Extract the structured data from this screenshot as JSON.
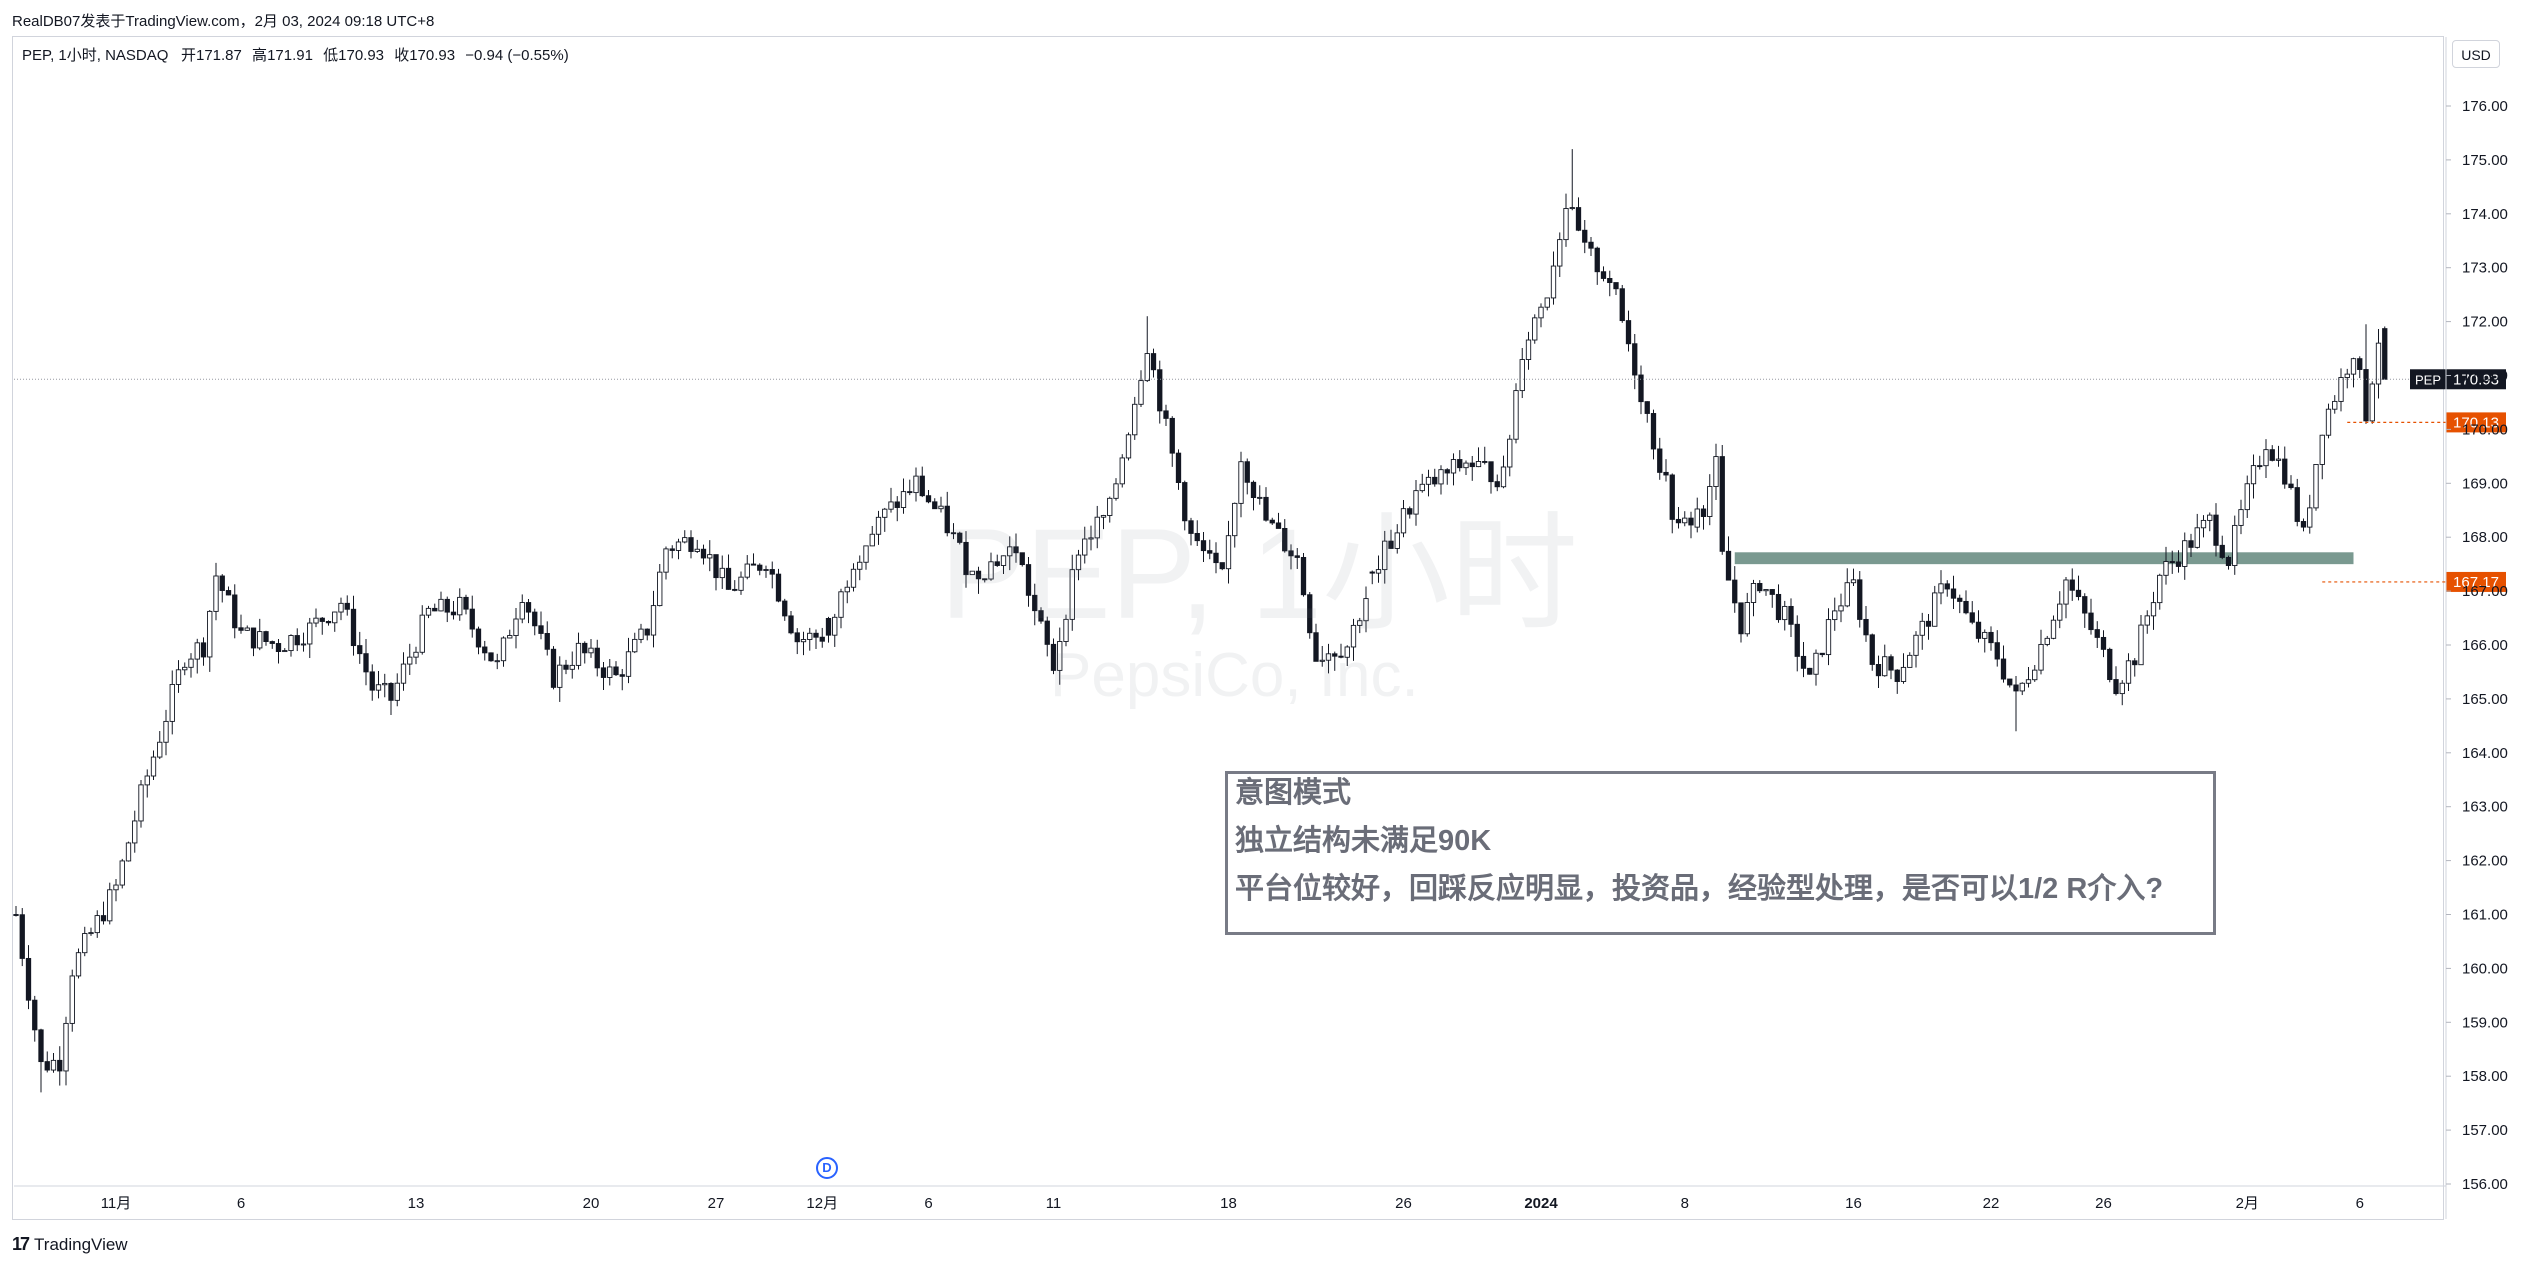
{
  "header": {
    "publisher": "RealDB07发表于TradingView.com，2月 03, 2024 09:18 UTC+8"
  },
  "legend": {
    "symbol": "PEP, 1小时, NASDAQ",
    "open_label": "开",
    "open": "171.87",
    "high_label": "高",
    "high": "171.91",
    "low_label": "低",
    "low": "170.93",
    "close_label": "收",
    "close": "170.93",
    "change": "−0.94 (−0.55%)"
  },
  "currency": "USD",
  "watermark": {
    "main": "PEP, 1小时",
    "sub": "PepsiCo, Inc."
  },
  "annotation": {
    "lines": [
      "意图模式",
      "独立结构未满足90K",
      "平台位较好，回踩反应明显，投资品，经验型处理，是否可以1/2 R介入?"
    ]
  },
  "event_marker": "D",
  "brand": "TradingView",
  "colors": {
    "candle_border": "#131722",
    "up_fill": "#ffffff",
    "down_fill": "#131722",
    "zone": "#6b8e84",
    "level_orange": "#e65100",
    "last_price_bg": "#131722",
    "grid_dotted": "#9598a1"
  },
  "chart_data": {
    "type": "candlestick",
    "symbol": "PEP",
    "timeframe": "1小时",
    "exchange": "NASDAQ",
    "ylim": [
      155.9,
      176.8
    ],
    "yticks": [
      "176.00",
      "175.00",
      "174.00",
      "173.00",
      "172.00",
      "171.00",
      "170.00",
      "169.00",
      "168.00",
      "167.00",
      "166.00",
      "165.00",
      "164.00",
      "163.00",
      "162.00",
      "161.00",
      "160.00",
      "159.00",
      "158.00",
      "157.00",
      "156.00"
    ],
    "xticks": [
      {
        "label": "11月",
        "bar": 16
      },
      {
        "label": "6",
        "bar": 36
      },
      {
        "label": "13",
        "bar": 64
      },
      {
        "label": "20",
        "bar": 92
      },
      {
        "label": "27",
        "bar": 112
      },
      {
        "label": "12月",
        "bar": 129
      },
      {
        "label": "6",
        "bar": 146
      },
      {
        "label": "11",
        "bar": 166
      },
      {
        "label": "18",
        "bar": 194
      },
      {
        "label": "26",
        "bar": 222
      },
      {
        "label": "2024",
        "bar": 244
      },
      {
        "label": "8",
        "bar": 267
      },
      {
        "label": "16",
        "bar": 294
      },
      {
        "label": "22",
        "bar": 316
      },
      {
        "label": "26",
        "bar": 334
      },
      {
        "label": "2月",
        "bar": 357
      },
      {
        "label": "6",
        "bar": 375
      }
    ],
    "waypoints": [
      [
        0,
        161.0
      ],
      [
        4,
        158.2
      ],
      [
        7,
        158.3
      ],
      [
        9,
        160.0
      ],
      [
        16,
        161.5
      ],
      [
        20,
        163.2
      ],
      [
        27,
        165.8
      ],
      [
        30,
        166.0
      ],
      [
        32,
        167.3
      ],
      [
        36,
        166.2
      ],
      [
        42,
        166.0
      ],
      [
        47,
        166.3
      ],
      [
        52,
        166.8
      ],
      [
        57,
        165.2
      ],
      [
        60,
        165.0
      ],
      [
        66,
        166.6
      ],
      [
        71,
        166.7
      ],
      [
        77,
        165.6
      ],
      [
        81,
        167.0
      ],
      [
        86,
        165.4
      ],
      [
        90,
        165.9
      ],
      [
        96,
        165.4
      ],
      [
        101,
        166.3
      ],
      [
        104,
        167.8
      ],
      [
        109,
        168.0
      ],
      [
        114,
        167.0
      ],
      [
        120,
        167.6
      ],
      [
        125,
        166.1
      ],
      [
        130,
        166.2
      ],
      [
        134,
        167.6
      ],
      [
        139,
        168.4
      ],
      [
        144,
        169.0
      ],
      [
        149,
        168.2
      ],
      [
        153,
        167.3
      ],
      [
        160,
        167.8
      ],
      [
        163,
        166.6
      ],
      [
        166,
        165.6
      ],
      [
        170,
        167.8
      ],
      [
        175,
        168.5
      ],
      [
        181,
        171.6
      ],
      [
        184,
        170.0
      ],
      [
        188,
        168.0
      ],
      [
        193,
        167.2
      ],
      [
        196,
        169.5
      ],
      [
        200,
        168.3
      ],
      [
        205,
        167.6
      ],
      [
        208,
        165.8
      ],
      [
        213,
        166.0
      ],
      [
        218,
        167.5
      ],
      [
        224,
        168.8
      ],
      [
        232,
        169.4
      ],
      [
        238,
        169.1
      ],
      [
        241,
        171.5
      ],
      [
        245,
        172.6
      ],
      [
        248,
        174.2
      ],
      [
        251,
        173.3
      ],
      [
        255,
        172.8
      ],
      [
        258,
        171.6
      ],
      [
        262,
        169.8
      ],
      [
        266,
        168.1
      ],
      [
        270,
        168.6
      ],
      [
        272,
        169.3
      ],
      [
        273,
        167.6
      ],
      [
        276,
        166.4
      ],
      [
        279,
        167.2
      ],
      [
        283,
        166.5
      ],
      [
        287,
        165.3
      ],
      [
        291,
        166.7
      ],
      [
        294,
        167.1
      ],
      [
        297,
        165.7
      ],
      [
        301,
        165.5
      ],
      [
        305,
        166.3
      ],
      [
        309,
        167.2
      ],
      [
        313,
        166.3
      ],
      [
        317,
        165.8
      ],
      [
        320,
        165.0
      ],
      [
        324,
        166.0
      ],
      [
        328,
        167.2
      ],
      [
        332,
        166.3
      ],
      [
        336,
        165.3
      ],
      [
        339,
        165.8
      ],
      [
        343,
        167.3
      ],
      [
        347,
        167.8
      ],
      [
        351,
        168.3
      ],
      [
        354,
        167.6
      ],
      [
        357,
        168.8
      ],
      [
        360,
        169.8
      ],
      [
        363,
        169.2
      ],
      [
        366,
        168.0
      ],
      [
        369,
        170.1
      ],
      [
        372,
        170.9
      ],
      [
        374,
        171.5
      ],
      [
        376,
        170.3
      ],
      [
        378,
        171.7
      ],
      [
        379,
        170.93
      ]
    ],
    "key_highs": [
      {
        "bar": 4,
        "low": 157.7
      },
      {
        "bar": 181,
        "high": 172.1
      },
      {
        "bar": 249,
        "high": 175.2
      },
      {
        "bar": 320,
        "low": 164.4
      },
      {
        "bar": 376,
        "high": 171.95
      }
    ],
    "gaps_after_bar": [
      129,
      216,
      268
    ],
    "last_price": {
      "label": "PEP",
      "value": "170.93",
      "price": 170.93
    },
    "levels": [
      {
        "value": "170.13",
        "price": 170.13,
        "from_bar": 373
      },
      {
        "value": "167.17",
        "price": 167.17,
        "from_bar": 369
      }
    ],
    "zone": {
      "top": 167.72,
      "bottom": 167.5,
      "from_bar": 275,
      "to_bar": 374
    },
    "event_bar": 129
  }
}
